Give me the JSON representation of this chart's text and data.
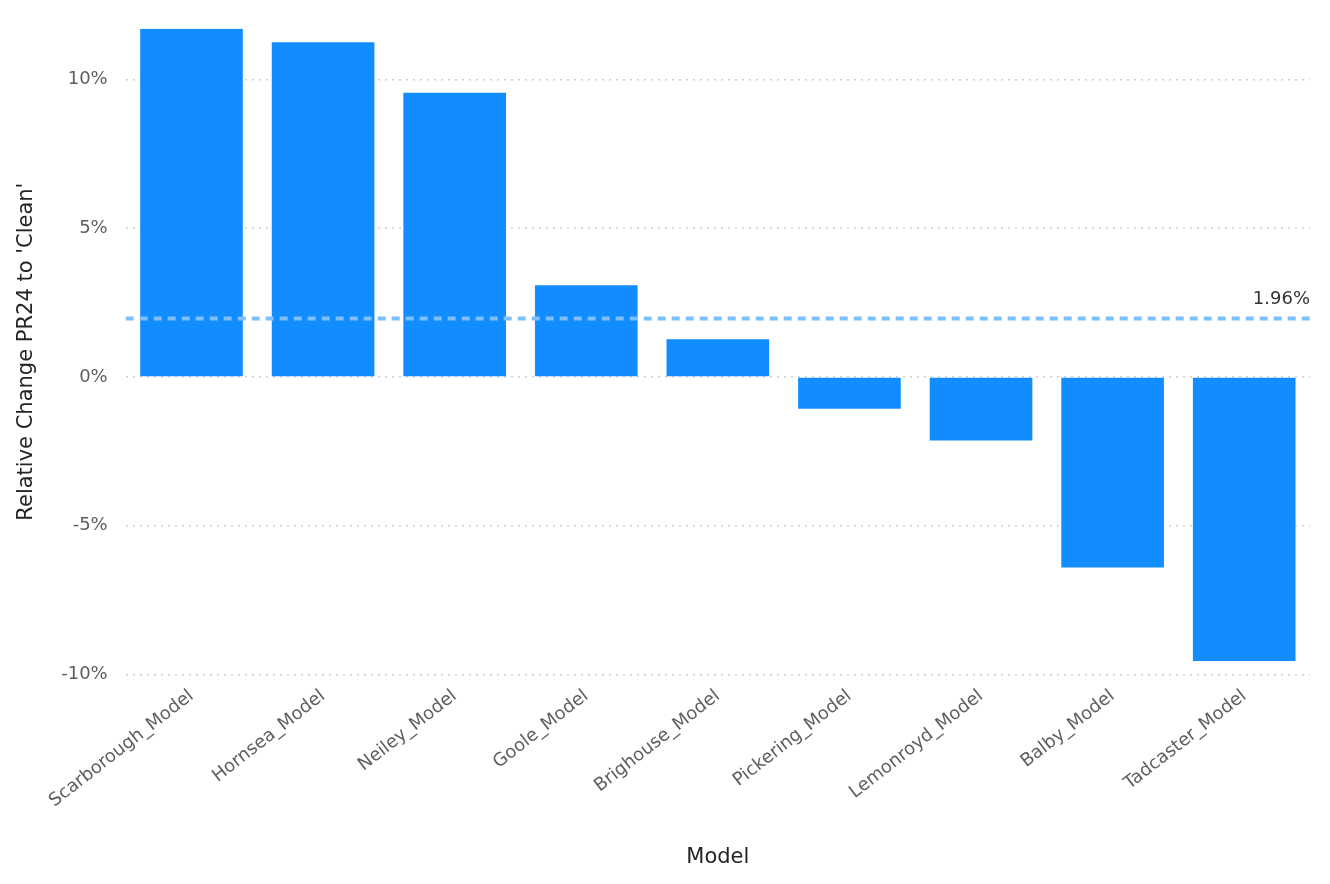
{
  "chart_data": {
    "type": "bar",
    "xlabel": "Model",
    "ylabel": "Relative Change PR24 to 'Clean'",
    "categories": [
      "Scarborough_Model",
      "Hornsea_Model",
      "Neiley_Model",
      "Goole_Model",
      "Brighouse_Model",
      "Pickering_Model",
      "Lemonroyd_Model",
      "Balby_Model",
      "Tadcaster_Model"
    ],
    "values": [
      11.7,
      11.25,
      9.55,
      3.08,
      1.27,
      -1.07,
      -2.14,
      -6.4,
      -9.55
    ],
    "color": "#118dff",
    "ylim": [
      -10,
      11.7
    ],
    "yticks": [
      {
        "value": -10,
        "label": "-10%"
      },
      {
        "value": -5,
        "label": "-5%"
      },
      {
        "value": 0,
        "label": "0%"
      },
      {
        "value": 5,
        "label": "5%"
      },
      {
        "value": 10,
        "label": "10%"
      }
    ],
    "grid": "y",
    "legend": false,
    "ref_lines": [
      {
        "axis": "y",
        "value": 1.96,
        "label": "1.96%",
        "color": "#7cc0ff",
        "line_style": "dashed"
      }
    ]
  }
}
